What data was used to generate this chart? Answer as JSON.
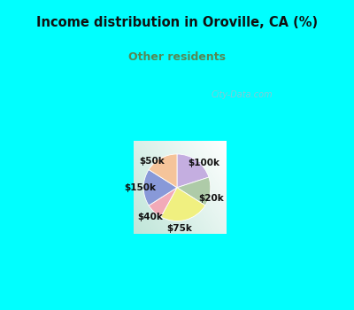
{
  "title": "Income distribution in Oroville, CA (%)",
  "subtitle": "Other residents",
  "title_color": "#111111",
  "subtitle_color": "#558855",
  "bg_color": "#00ffff",
  "labels": [
    "$100k",
    "$20k",
    "$75k",
    "$40k",
    "$150k",
    "$50k"
  ],
  "sizes": [
    20,
    14,
    24,
    8,
    18,
    16
  ],
  "colors": [
    "#c4aee0",
    "#aecba8",
    "#f0f080",
    "#f2aab8",
    "#8899d8",
    "#f5c49a"
  ],
  "startangle": 90,
  "watermark": "City-Data.com"
}
